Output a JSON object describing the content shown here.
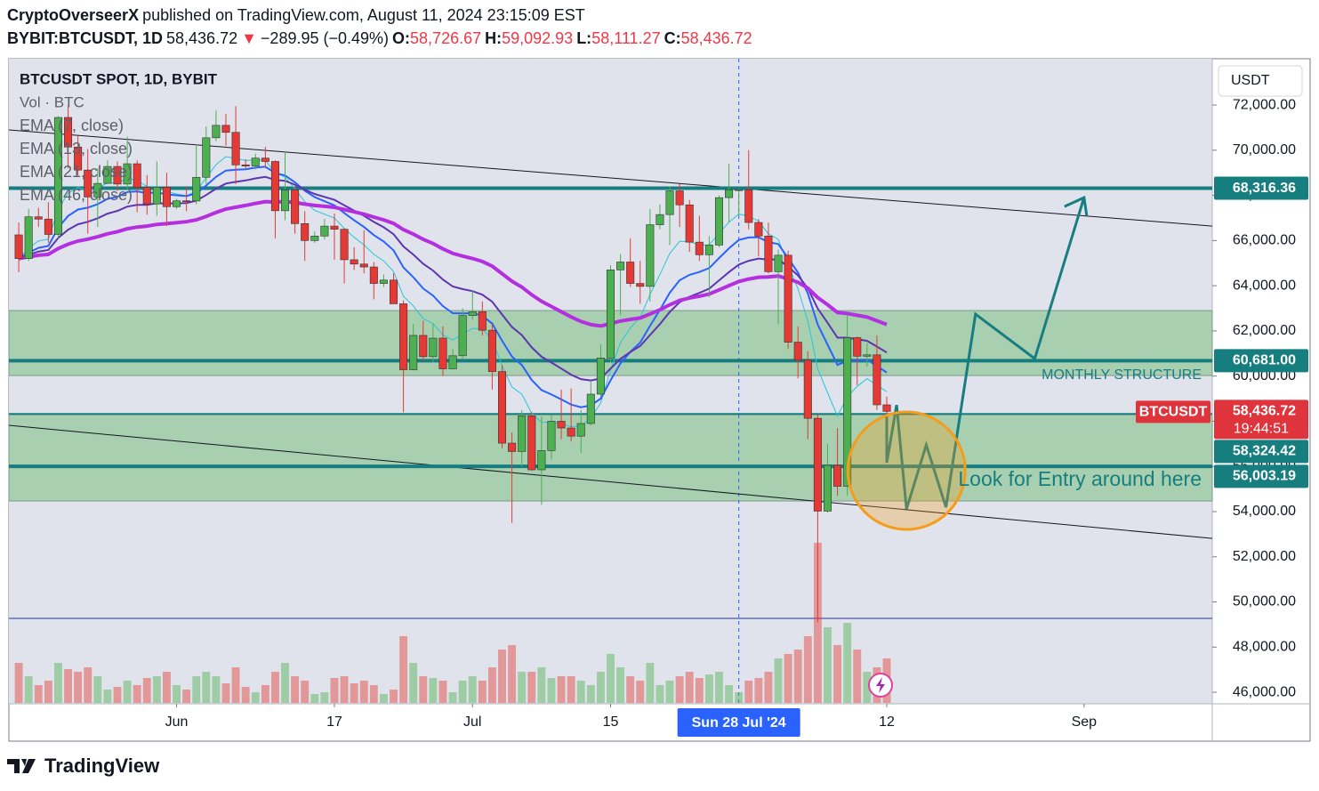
{
  "header": {
    "publisher": "CryptoOverseerX",
    "published": "published on TradingView.com, August 11, 2024 23:15:09 EST",
    "symbol": "BYBIT:BTCUSDT, 1D",
    "last": "58,436.72",
    "arrow": "▼",
    "change": "−289.95 (−0.49%)",
    "o_label": "O:",
    "open": "58,726.67",
    "h_label": "H:",
    "high": "59,092.93",
    "l_label": "L:",
    "low": "58,111.27",
    "c_label": "C:",
    "close": "58,436.72"
  },
  "chart_data": {
    "type": "candlestick",
    "legend_title": "BTCUSDT SPOT, 1D, BYBIT",
    "legend_volume": "Vol · BTC",
    "currency": "USDT",
    "x": [
      "2024-05-16",
      "2024-05-17",
      "2024-05-18",
      "2024-05-19",
      "2024-05-20",
      "2024-05-21",
      "2024-05-22",
      "2024-05-23",
      "2024-05-24",
      "2024-05-25",
      "2024-05-26",
      "2024-05-27",
      "2024-05-28",
      "2024-05-29",
      "2024-05-30",
      "2024-05-31",
      "2024-06-01",
      "2024-06-02",
      "2024-06-03",
      "2024-06-04",
      "2024-06-05",
      "2024-06-06",
      "2024-06-07",
      "2024-06-08",
      "2024-06-09",
      "2024-06-10",
      "2024-06-11",
      "2024-06-12",
      "2024-06-13",
      "2024-06-14",
      "2024-06-15",
      "2024-06-16",
      "2024-06-17",
      "2024-06-18",
      "2024-06-19",
      "2024-06-20",
      "2024-06-21",
      "2024-06-22",
      "2024-06-23",
      "2024-06-24",
      "2024-06-25",
      "2024-06-26",
      "2024-06-27",
      "2024-06-28",
      "2024-06-29",
      "2024-06-30",
      "2024-07-01",
      "2024-07-02",
      "2024-07-03",
      "2024-07-04",
      "2024-07-05",
      "2024-07-06",
      "2024-07-07",
      "2024-07-08",
      "2024-07-09",
      "2024-07-10",
      "2024-07-11",
      "2024-07-12",
      "2024-07-13",
      "2024-07-14",
      "2024-07-15",
      "2024-07-16",
      "2024-07-17",
      "2024-07-18",
      "2024-07-19",
      "2024-07-20",
      "2024-07-21",
      "2024-07-22",
      "2024-07-23",
      "2024-07-24",
      "2024-07-25",
      "2024-07-26",
      "2024-07-27",
      "2024-07-28",
      "2024-07-29",
      "2024-07-30",
      "2024-07-31",
      "2024-08-01",
      "2024-08-02",
      "2024-08-03",
      "2024-08-04",
      "2024-08-05",
      "2024-08-06",
      "2024-08-07",
      "2024-08-08",
      "2024-08-09",
      "2024-08-10",
      "2024-08-11",
      "2024-08-12"
    ],
    "open": [
      66250,
      65200,
      67050,
      66950,
      66270,
      71450,
      70140,
      69120,
      67930,
      68530,
      69280,
      68500,
      69400,
      68350,
      67620,
      68360,
      67500,
      67760,
      67750,
      68800,
      70550,
      71100,
      70790,
      69350,
      69300,
      69650,
      69500,
      67320,
      68240,
      66750,
      66000,
      66200,
      66640,
      66500,
      65150,
      64960,
      64830,
      64100,
      64250,
      63200,
      60280,
      61800,
      60860,
      61680,
      60320,
      60900,
      62680,
      62850,
      62030,
      60200,
      57030,
      56660,
      58240,
      55850,
      56700,
      58000,
      57700,
      57340,
      57900,
      59200,
      60800,
      64700,
      65050,
      64100,
      63970,
      66700,
      67150,
      68200,
      67580,
      65930,
      65370,
      65800,
      67900,
      68250,
      68250,
      66800,
      66200,
      64620,
      65350,
      61500,
      60700,
      58130,
      54020,
      56050,
      55120,
      61700,
      60880,
      60940,
      58726.67
    ],
    "high": [
      66800,
      67400,
      67450,
      67700,
      71500,
      71950,
      70650,
      70050,
      69200,
      69550,
      69500,
      70600,
      69550,
      68900,
      69500,
      69000,
      67850,
      68400,
      70250,
      71050,
      71750,
      71600,
      71950,
      69600,
      69850,
      70150,
      69550,
      69950,
      68400,
      67300,
      66400,
      66950,
      67200,
      66550,
      65700,
      66450,
      65050,
      64500,
      64550,
      63350,
      62300,
      62450,
      62350,
      62200,
      61200,
      63000,
      63800,
      63300,
      62300,
      60500,
      57500,
      58500,
      58400,
      58200,
      58300,
      59400,
      59450,
      58500,
      59800,
      61400,
      64900,
      65400,
      66100,
      65100,
      67400,
      67600,
      68400,
      68500,
      67800,
      67100,
      66200,
      68000,
      69400,
      68300,
      70000,
      66950,
      66800,
      65600,
      65550,
      62200,
      61100,
      58300,
      57000,
      57700,
      62700,
      61750,
      61450,
      61800,
      59092.93
    ],
    "low": [
      64600,
      65100,
      66600,
      65900,
      66100,
      69200,
      68900,
      66300,
      66600,
      68500,
      68200,
      68250,
      67250,
      67150,
      67100,
      66650,
      67400,
      67300,
      67600,
      68500,
      70400,
      70200,
      68500,
      69200,
      69150,
      69250,
      66100,
      66900,
      66300,
      65100,
      65900,
      66050,
      65150,
      64100,
      64700,
      64550,
      63400,
      63950,
      63200,
      58400,
      60250,
      60700,
      60600,
      60000,
      60300,
      60750,
      62500,
      61800,
      59400,
      56800,
      53500,
      56000,
      55800,
      54300,
      56300,
      57200,
      57100,
      56600,
      57800,
      59100,
      60600,
      62700,
      63950,
      63200,
      63300,
      66500,
      65800,
      66600,
      65500,
      65100,
      63500,
      65700,
      66800,
      67100,
      66500,
      65300,
      64550,
      62300,
      61200,
      59900,
      57200,
      49100,
      53950,
      54700,
      54700,
      59600,
      60400,
      58500,
      58111.27
    ],
    "close": [
      65200,
      67050,
      66950,
      66270,
      71450,
      70140,
      69120,
      67930,
      68530,
      69280,
      68500,
      69400,
      68350,
      67620,
      68360,
      67500,
      67760,
      67750,
      68800,
      70550,
      71100,
      70790,
      69350,
      69300,
      69650,
      69500,
      67320,
      68240,
      66750,
      66000,
      66200,
      66640,
      66500,
      65150,
      64960,
      64830,
      64100,
      64250,
      63200,
      60280,
      61800,
      60860,
      61680,
      60320,
      60900,
      62680,
      62850,
      62030,
      60200,
      57030,
      56660,
      58240,
      55850,
      56700,
      58000,
      57700,
      57340,
      57900,
      59200,
      60800,
      64700,
      65050,
      64100,
      63970,
      66700,
      67150,
      68200,
      67580,
      65930,
      65370,
      65800,
      67900,
      68250,
      68250,
      66800,
      66200,
      64620,
      65350,
      61500,
      60700,
      58130,
      54020,
      56050,
      55120,
      61700,
      60880,
      60940,
      58726.67,
      58436.72
    ],
    "volume": [
      45,
      30,
      20,
      25,
      45,
      38,
      35,
      40,
      30,
      15,
      18,
      25,
      20,
      28,
      30,
      35,
      20,
      15,
      30,
      35,
      30,
      22,
      40,
      18,
      12,
      20,
      35,
      45,
      30,
      25,
      10,
      12,
      28,
      30,
      22,
      25,
      20,
      10,
      15,
      75,
      45,
      30,
      28,
      25,
      12,
      25,
      30,
      25,
      40,
      60,
      65,
      35,
      35,
      40,
      28,
      30,
      30,
      25,
      20,
      35,
      55,
      40,
      30,
      25,
      45,
      20,
      25,
      30,
      35,
      28,
      32,
      35,
      20,
      12,
      25,
      28,
      35,
      50,
      55,
      60,
      75,
      180,
      85,
      65,
      90,
      60,
      35,
      40,
      50
    ],
    "up_color": "#4caf50",
    "down_color": "#e53935",
    "emas": [
      {
        "name": "EMA (7, close)",
        "period": 7,
        "color": "#26c6da"
      },
      {
        "name": "EMA (13, close)",
        "period": 13,
        "color": "#2962ff"
      },
      {
        "name": "EMA (21, close)",
        "period": 21,
        "color": "#5e35b1"
      },
      {
        "name": "EMA (46, close)",
        "period": 46,
        "color": "#b42fe0"
      }
    ],
    "ylim": [
      45490,
      74050
    ],
    "yticks": [
      {
        "value": 46000,
        "label": "46,000.00"
      },
      {
        "value": 48000,
        "label": "48,000.00"
      },
      {
        "value": 50000,
        "label": "50,000.00"
      },
      {
        "value": 52000,
        "label": "52,000.00"
      },
      {
        "value": 54000,
        "label": "54,000.00"
      },
      {
        "value": 56000,
        "label": "56,000.00"
      },
      {
        "value": 58000,
        "label": "58,000.00"
      },
      {
        "value": 60000,
        "label": "60,000.00"
      },
      {
        "value": 62000,
        "label": "62,000.00"
      },
      {
        "value": 64000,
        "label": "64,000.00"
      },
      {
        "value": 66000,
        "label": "66,000.00"
      },
      {
        "value": 68000,
        "label": "68,000.00"
      },
      {
        "value": 70000,
        "label": "70,000.00"
      },
      {
        "value": 72000,
        "label": "72,000.00"
      }
    ],
    "xlim": [
      "2024-05-15",
      "2024-09-14"
    ],
    "xticks": [
      {
        "value": "2024-06-01",
        "label": "Jun"
      },
      {
        "value": "2024-06-17",
        "label": "17"
      },
      {
        "value": "2024-07-01",
        "label": "Jul"
      },
      {
        "value": "2024-07-15",
        "label": "15"
      },
      {
        "value": "2024-08-12",
        "label": "12"
      },
      {
        "value": "2024-09-01",
        "label": "Sep"
      }
    ],
    "crosshair": {
      "value": "2024-07-28",
      "label": "Sun 28 Jul '24"
    },
    "zones": [
      {
        "from": 60025,
        "to": 62900
      },
      {
        "from": 54470,
        "to": 58290
      }
    ],
    "hlines": [
      {
        "value": 68316.36,
        "label": "68,316.36"
      },
      {
        "value": 60681.0,
        "label": "60,681.00"
      },
      {
        "value": 58324.42,
        "label": "58,324.42"
      },
      {
        "value": 56003.19,
        "label": "56,003.19"
      }
    ],
    "line_color": "#177e80",
    "last_price": {
      "name": "BTCUSDT",
      "value": 58436.72,
      "label": "58,436.72",
      "countdown": "19:44:51",
      "color": "#e0343d"
    },
    "trendlines": [
      {
        "x": [
          "2024-05-15",
          "2024-09-14"
        ],
        "y": [
          70900,
          66640
        ]
      },
      {
        "x": [
          "2024-05-15",
          "2024-09-14"
        ],
        "y": [
          57820,
          52810
        ]
      }
    ],
    "projection": {
      "x": [
        "2024-08-12",
        "2024-08-12",
        "2024-08-13",
        "2024-08-14",
        "2024-08-16",
        "2024-08-18",
        "2024-08-21",
        "2024-08-27",
        "2024-09-01"
      ],
      "y": [
        58210,
        56160,
        58720,
        54110,
        56950,
        54190,
        62740,
        60770,
        67900
      ],
      "color": "#177e80"
    },
    "circle": {
      "x": "2024-08-14",
      "y": 55810,
      "color": "#f59c1a"
    },
    "notes": [
      {
        "text": "MONTHLY STRUCTURE",
        "value": 60025
      },
      {
        "text": "Look for Entry around here",
        "value": 55380
      }
    ]
  },
  "footer": {
    "brand": "TradingView"
  }
}
